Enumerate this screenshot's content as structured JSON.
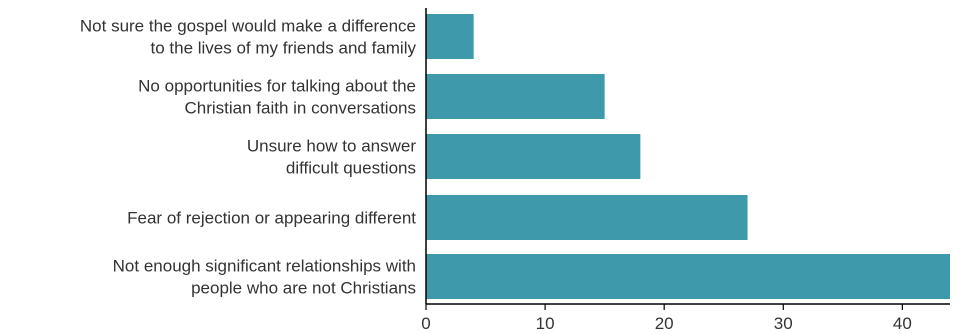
{
  "chart_data": {
    "type": "bar",
    "orientation": "horizontal",
    "title": "",
    "xlabel": "",
    "ylabel": "",
    "bar_color": "#3e9aab",
    "categories": [
      [
        "Not sure the gospel would make a difference",
        "to the lives of my friends and family"
      ],
      [
        "No opportunities for talking about the",
        "Christian faith in conversations"
      ],
      [
        "Unsure how to answer",
        "difficult questions"
      ],
      [
        "Fear of rejection or appearing different"
      ],
      [
        "Not enough significant relationships with",
        "people who are not Christians"
      ]
    ],
    "values": [
      4,
      15,
      18,
      27,
      44
    ],
    "xlim": [
      0,
      44
    ],
    "xticks": [
      0,
      10,
      20,
      30,
      40
    ],
    "grid": false,
    "legend": "none"
  }
}
